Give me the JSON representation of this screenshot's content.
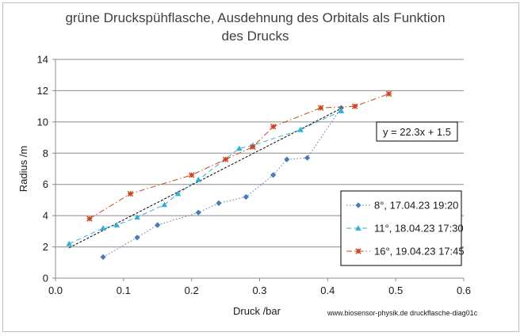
{
  "chart_data": {
    "type": "scatter",
    "title_lines": [
      "grüne Druckspühflasche, Ausdehnung des Orbitals als Funktion",
      "des Drucks"
    ],
    "xlabel": "Druck /bar",
    "ylabel": "Radius /m",
    "xlim": [
      0,
      0.6
    ],
    "ylim": [
      0,
      14
    ],
    "x_ticks": [
      0.0,
      0.1,
      0.2,
      0.3,
      0.4,
      0.5,
      0.6
    ],
    "x_tick_labels": [
      "0.0",
      "0.1",
      "0.2",
      "0.3",
      "0.4",
      "0.5",
      "0.6"
    ],
    "y_ticks": [
      0,
      2,
      4,
      6,
      8,
      10,
      12,
      14
    ],
    "y_tick_labels": [
      "0",
      "2",
      "4",
      "6",
      "8",
      "10",
      "12",
      "14"
    ],
    "grid": "horizontal",
    "legend_position": "right",
    "series": [
      {
        "name": "8°, 17.04.23 19:20",
        "color": "#4a78b8",
        "marker": "diamond",
        "line": "dotted",
        "x": [
          0.07,
          0.12,
          0.15,
          0.21,
          0.24,
          0.28,
          0.32,
          0.34,
          0.37,
          0.42
        ],
        "y": [
          1.35,
          2.6,
          3.4,
          4.2,
          4.8,
          5.2,
          6.6,
          7.6,
          7.7,
          10.9
        ]
      },
      {
        "name": "11°, 18.04.23 17:30",
        "color": "#2fb0d8",
        "marker": "triangle",
        "line": "dashed",
        "x": [
          0.02,
          0.07,
          0.09,
          0.12,
          0.16,
          0.18,
          0.21,
          0.27,
          0.29,
          0.36,
          0.42
        ],
        "y": [
          2.2,
          3.2,
          3.4,
          3.9,
          4.7,
          5.4,
          6.3,
          8.3,
          8.5,
          9.5,
          10.7
        ]
      },
      {
        "name": "16°, 19.04.23 17:45",
        "color": "#c8461a",
        "marker": "star",
        "line": "dashdot",
        "x": [
          0.05,
          0.11,
          0.2,
          0.25,
          0.29,
          0.32,
          0.39,
          0.44,
          0.49
        ],
        "y": [
          3.8,
          5.4,
          6.6,
          7.6,
          8.4,
          9.7,
          10.9,
          11.0,
          11.8
        ]
      }
    ],
    "trendline": {
      "equation": "y = 22.3x + 1.5",
      "slope": 22.3,
      "intercept": 1.5,
      "x_range": [
        0.02,
        0.42
      ],
      "color": "#000000"
    },
    "credit": "www.biosensor-physik.de druckflasche-diag01c"
  }
}
